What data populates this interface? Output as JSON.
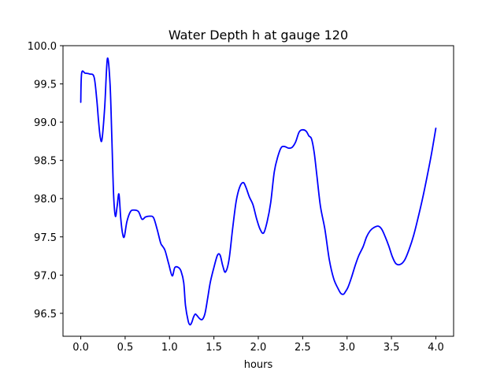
{
  "chart_data": {
    "type": "line",
    "title": "Water Depth h at gauge 120",
    "xlabel": "hours",
    "ylabel": "",
    "xlim": [
      -0.2,
      4.2
    ],
    "ylim": [
      96.2,
      100.0
    ],
    "xticks": [
      0.0,
      0.5,
      1.0,
      1.5,
      2.0,
      2.5,
      3.0,
      3.5,
      4.0
    ],
    "xtick_labels": [
      "0.0",
      "0.5",
      "1.0",
      "1.5",
      "2.0",
      "2.5",
      "3.0",
      "3.5",
      "4.0"
    ],
    "yticks": [
      96.5,
      97.0,
      97.5,
      98.0,
      98.5,
      99.0,
      99.5,
      100.0
    ],
    "ytick_labels": [
      "96.5",
      "97.0",
      "97.5",
      "98.0",
      "98.5",
      "99.0",
      "99.5",
      "100.0"
    ],
    "grid": false,
    "series": [
      {
        "color": "#0000ff",
        "x": [
          0.0,
          0.01,
          0.05,
          0.1,
          0.15,
          0.18,
          0.2,
          0.22,
          0.24,
          0.27,
          0.3,
          0.33,
          0.35,
          0.37,
          0.39,
          0.41,
          0.43,
          0.45,
          0.47,
          0.49,
          0.52,
          0.56,
          0.6,
          0.65,
          0.69,
          0.73,
          0.78,
          0.82,
          0.86,
          0.9,
          0.92,
          0.95,
          0.99,
          1.03,
          1.06,
          1.1,
          1.13,
          1.16,
          1.18,
          1.21,
          1.23,
          1.25,
          1.27,
          1.29,
          1.31,
          1.34,
          1.37,
          1.4,
          1.43,
          1.46,
          1.5,
          1.54,
          1.57,
          1.6,
          1.63,
          1.67,
          1.71,
          1.75,
          1.79,
          1.83,
          1.86,
          1.9,
          1.94,
          1.98,
          2.02,
          2.06,
          2.1,
          2.14,
          2.18,
          2.22,
          2.26,
          2.3,
          2.34,
          2.38,
          2.42,
          2.46,
          2.5,
          2.54,
          2.57,
          2.6,
          2.63,
          2.66,
          2.7,
          2.75,
          2.8,
          2.85,
          2.9,
          2.93,
          2.96,
          2.98,
          3.01,
          3.05,
          3.09,
          3.13,
          3.18,
          3.22,
          3.26,
          3.3,
          3.35,
          3.39,
          3.43,
          3.47,
          3.51,
          3.55,
          3.6,
          3.65,
          3.7,
          3.75,
          3.8,
          3.85,
          3.9,
          3.95,
          4.0
        ],
        "y": [
          99.26,
          99.64,
          99.64,
          99.63,
          99.59,
          99.3,
          99.02,
          98.8,
          98.78,
          99.2,
          99.83,
          99.5,
          98.8,
          98.05,
          97.77,
          97.9,
          98.06,
          97.75,
          97.55,
          97.5,
          97.7,
          97.83,
          97.85,
          97.83,
          97.73,
          97.76,
          97.77,
          97.75,
          97.6,
          97.42,
          97.38,
          97.32,
          97.15,
          96.99,
          97.1,
          97.1,
          97.05,
          96.9,
          96.6,
          96.4,
          96.35,
          96.38,
          96.45,
          96.49,
          96.47,
          96.43,
          96.42,
          96.5,
          96.7,
          96.91,
          97.1,
          97.26,
          97.26,
          97.12,
          97.04,
          97.2,
          97.6,
          97.96,
          98.15,
          98.21,
          98.15,
          98.02,
          97.92,
          97.74,
          97.6,
          97.55,
          97.7,
          97.95,
          98.35,
          98.55,
          98.67,
          98.68,
          98.66,
          98.67,
          98.74,
          98.87,
          98.9,
          98.88,
          98.82,
          98.78,
          98.6,
          98.3,
          97.9,
          97.6,
          97.2,
          96.95,
          96.82,
          96.76,
          96.75,
          96.78,
          96.84,
          96.97,
          97.12,
          97.25,
          97.37,
          97.5,
          97.58,
          97.62,
          97.64,
          97.6,
          97.5,
          97.38,
          97.24,
          97.15,
          97.14,
          97.2,
          97.34,
          97.52,
          97.75,
          98.0,
          98.28,
          98.58,
          98.92
        ]
      }
    ]
  }
}
